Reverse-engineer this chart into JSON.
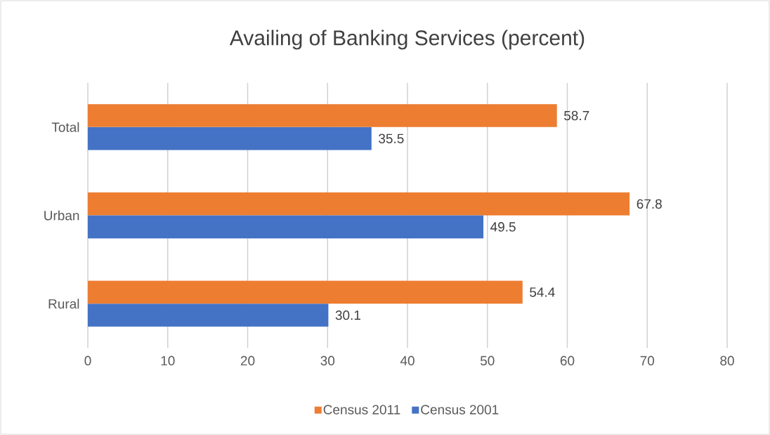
{
  "chart_data": {
    "type": "bar",
    "orientation": "horizontal",
    "title": "Availing of Banking Services (percent)",
    "categories": [
      "Total",
      "Urban",
      "Rural"
    ],
    "series": [
      {
        "name": "Census 2011",
        "color": "#ed7d31",
        "values": [
          58.7,
          67.8,
          54.4
        ]
      },
      {
        "name": "Census 2001",
        "color": "#4472c4",
        "values": [
          35.5,
          49.5,
          30.1
        ]
      }
    ],
    "xlim": [
      0,
      80
    ],
    "xticks": [
      0,
      10,
      20,
      30,
      40,
      50,
      60,
      70,
      80
    ],
    "grid": "x",
    "legend": "bottom",
    "data_labels": true
  }
}
